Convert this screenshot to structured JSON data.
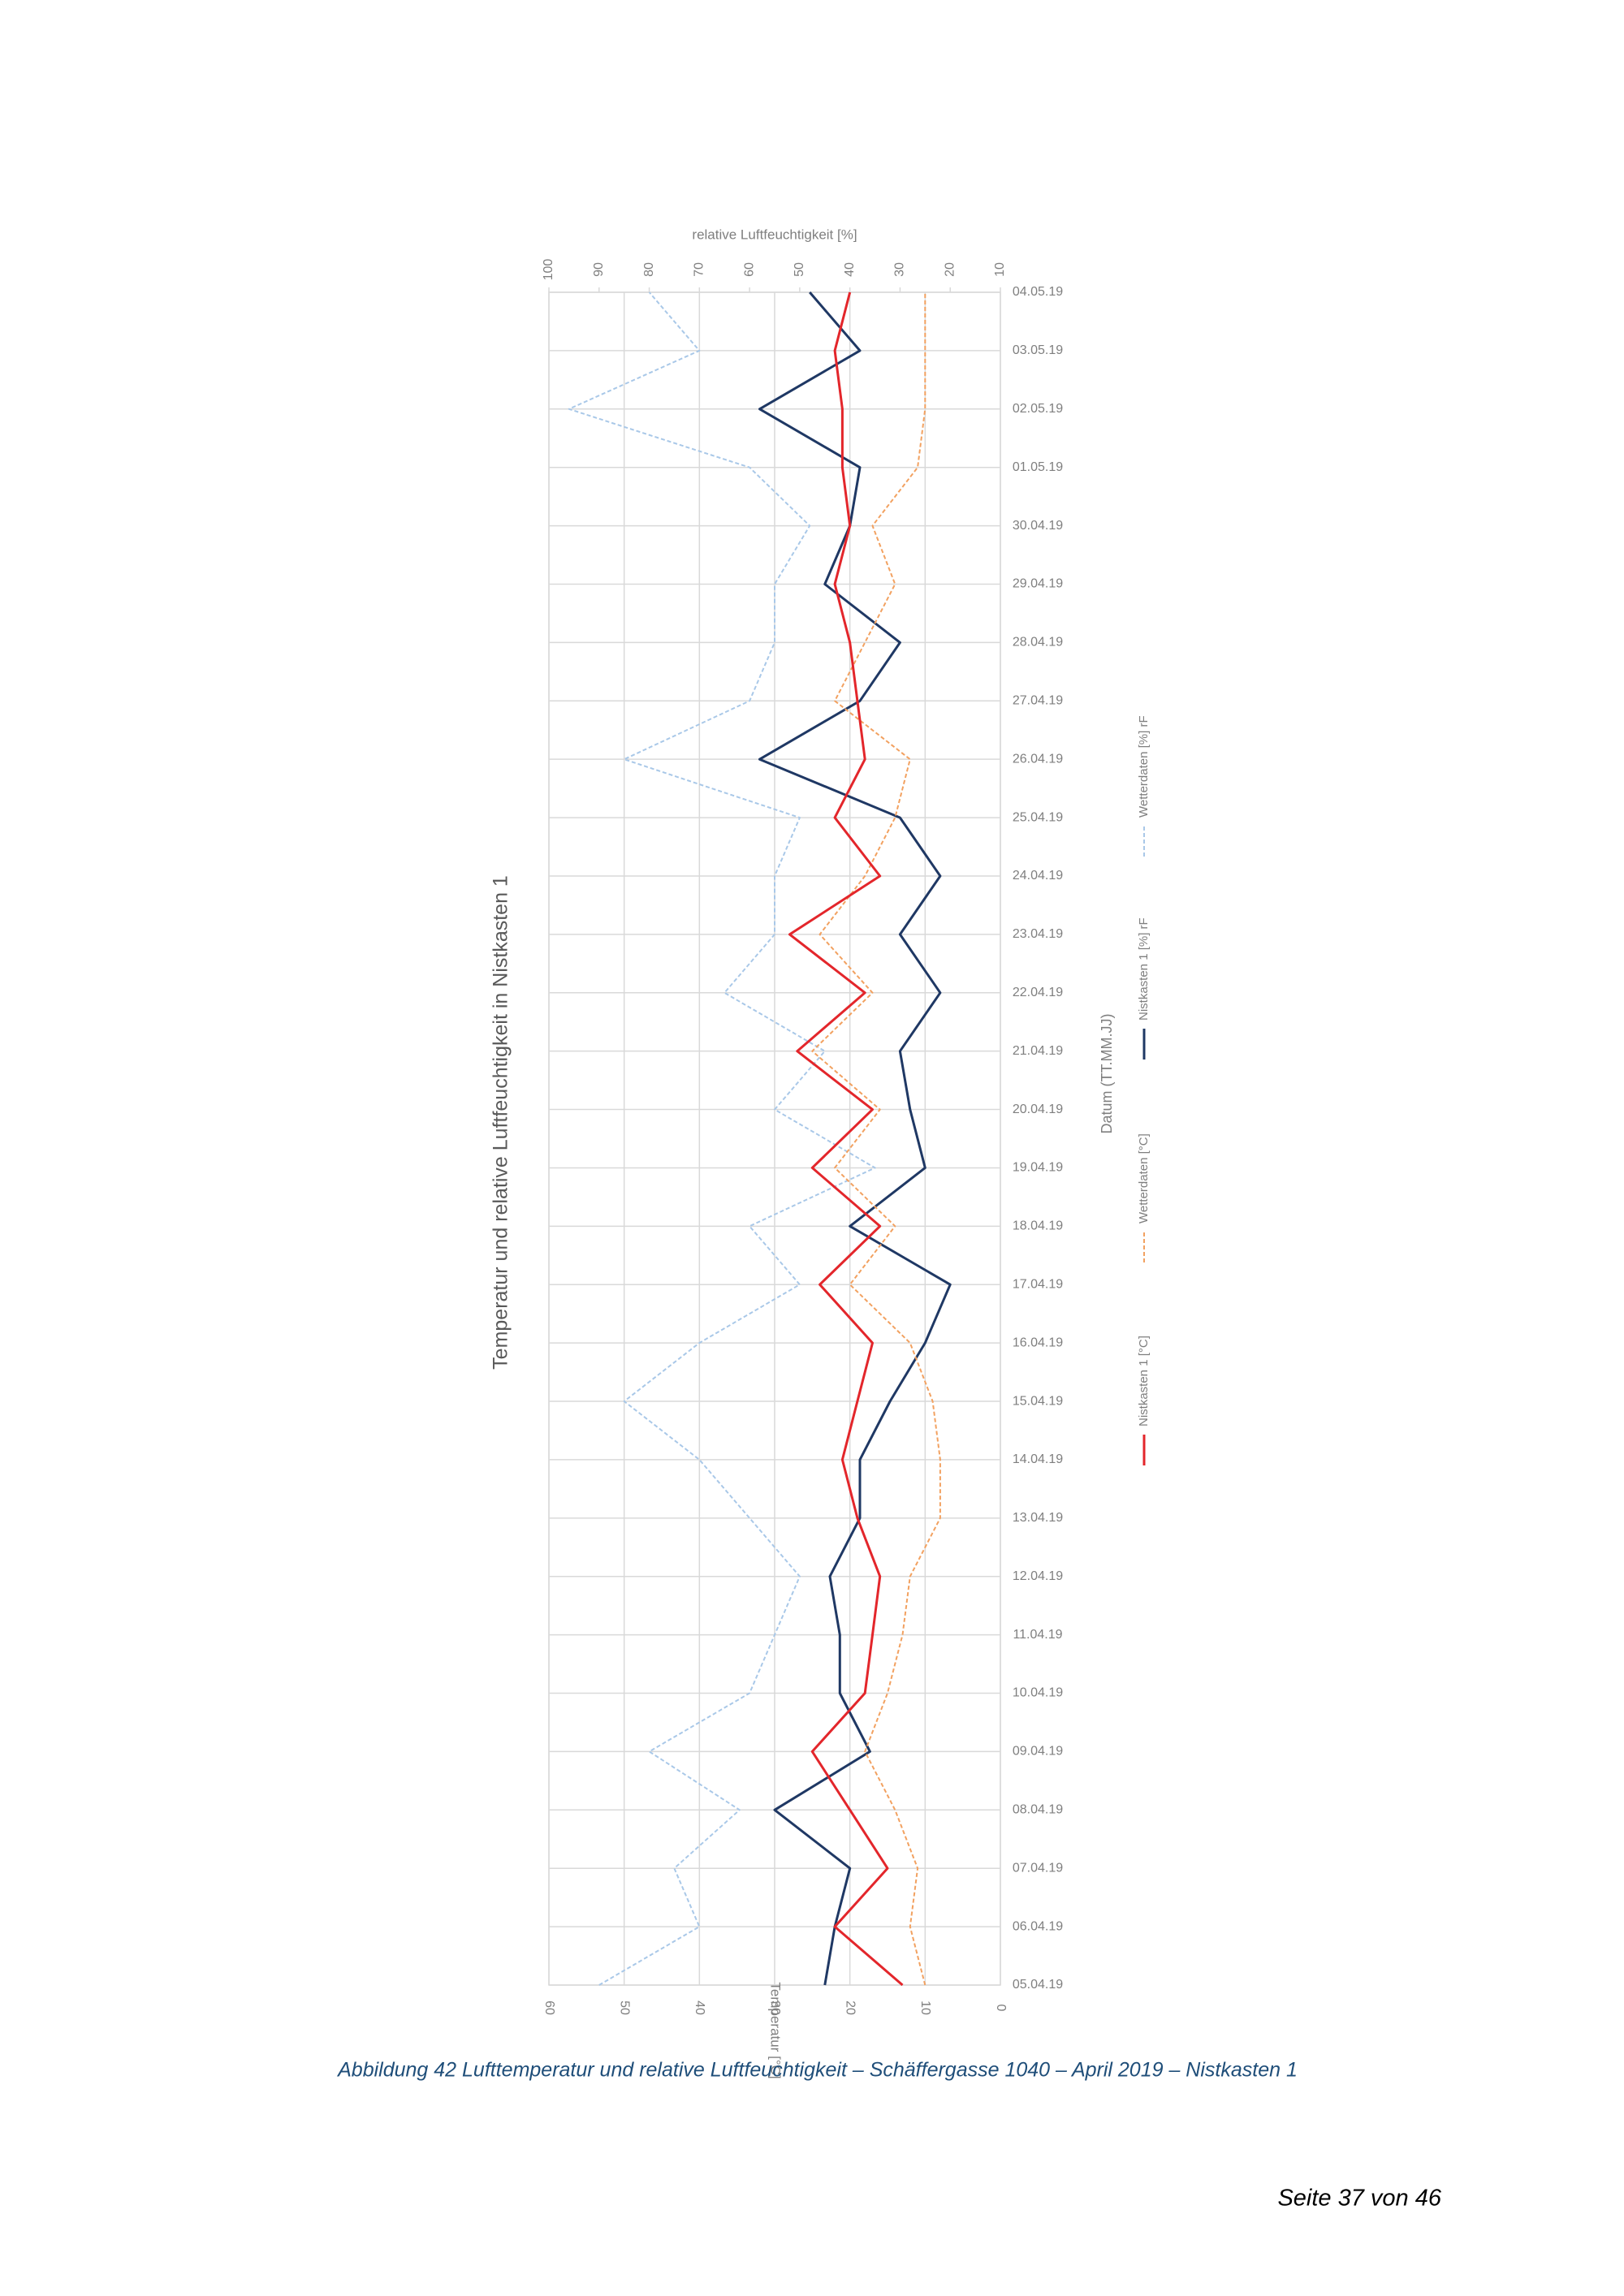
{
  "chart_data": {
    "type": "line",
    "title": "Temperatur und relative Luftfeuchtigkeit in Nistkasten 1",
    "x_label": "Datum (TT.MM.JJ)",
    "y_label": "Temperatur [°C]",
    "y2_label": "relative Luftfeuchtigkeit [%]",
    "categories": [
      "05.04.19",
      "06.04.19",
      "07.04.19",
      "08.04.19",
      "09.04.19",
      "10.04.19",
      "11.04.19",
      "12.04.19",
      "13.04.19",
      "14.04.19",
      "15.04.19",
      "16.04.19",
      "17.04.19",
      "18.04.19",
      "19.04.19",
      "20.04.19",
      "21.04.19",
      "22.04.19",
      "23.04.19",
      "24.04.19",
      "25.04.19",
      "26.04.19",
      "27.04.19",
      "28.04.19",
      "29.04.19",
      "30.04.19",
      "01.05.19",
      "02.05.19",
      "03.05.19",
      "04.05.19"
    ],
    "series": [
      {
        "name": "Nistkasten 1 [°C]",
        "color": "#e3262b",
        "linestyle": "solid",
        "axis": "y",
        "values": [
          13,
          22,
          15,
          20,
          25,
          18,
          17,
          16,
          19,
          21,
          19,
          17,
          24,
          16,
          25,
          17,
          27,
          18,
          28,
          16,
          22,
          18,
          19,
          20,
          22,
          20,
          21,
          21,
          22,
          20
        ]
      },
      {
        "name": "Wetterdaten [°C]",
        "color": "#f2a160",
        "linestyle": "dashed",
        "axis": "y",
        "values": [
          10,
          12,
          11,
          14,
          18,
          15,
          13,
          12,
          8,
          8,
          9,
          12,
          20,
          14,
          22,
          16,
          25,
          17,
          24,
          18,
          14,
          12,
          22,
          18,
          14,
          17,
          11,
          10,
          10,
          10
        ]
      },
      {
        "name": "Nistkasten 1 [%] rF",
        "color": "#1f3864",
        "linestyle": "solid",
        "axis": "y2",
        "values": [
          45,
          43,
          40,
          55,
          36,
          42,
          42,
          44,
          38,
          38,
          32,
          25,
          20,
          40,
          25,
          28,
          30,
          22,
          30,
          22,
          30,
          58,
          38,
          30,
          45,
          40,
          38,
          58,
          38,
          48
        ]
      },
      {
        "name": "Wetterdaten [%] rF",
        "color": "#a9c8e8",
        "linestyle": "dashed",
        "axis": "y2",
        "values": [
          90,
          70,
          75,
          62,
          80,
          60,
          55,
          50,
          60,
          70,
          85,
          70,
          50,
          60,
          35,
          55,
          45,
          65,
          55,
          55,
          50,
          85,
          60,
          55,
          55,
          48,
          60,
          96,
          70,
          80
        ]
      }
    ],
    "ylim": [
      0,
      60
    ],
    "yticks": [
      0,
      10,
      20,
      30,
      40,
      50,
      60
    ],
    "y2lim": [
      10,
      100
    ],
    "y2ticks": [
      10,
      20,
      30,
      40,
      50,
      60,
      70,
      80,
      90,
      100
    ],
    "grid": true,
    "legend": "bottom"
  },
  "caption": "Abbildung 42 Lufttemperatur und relative Luftfeuchtigkeit – Schäffergasse 1040 – April 2019 – Nistkasten 1",
  "footer": "Seite 37 von 46"
}
